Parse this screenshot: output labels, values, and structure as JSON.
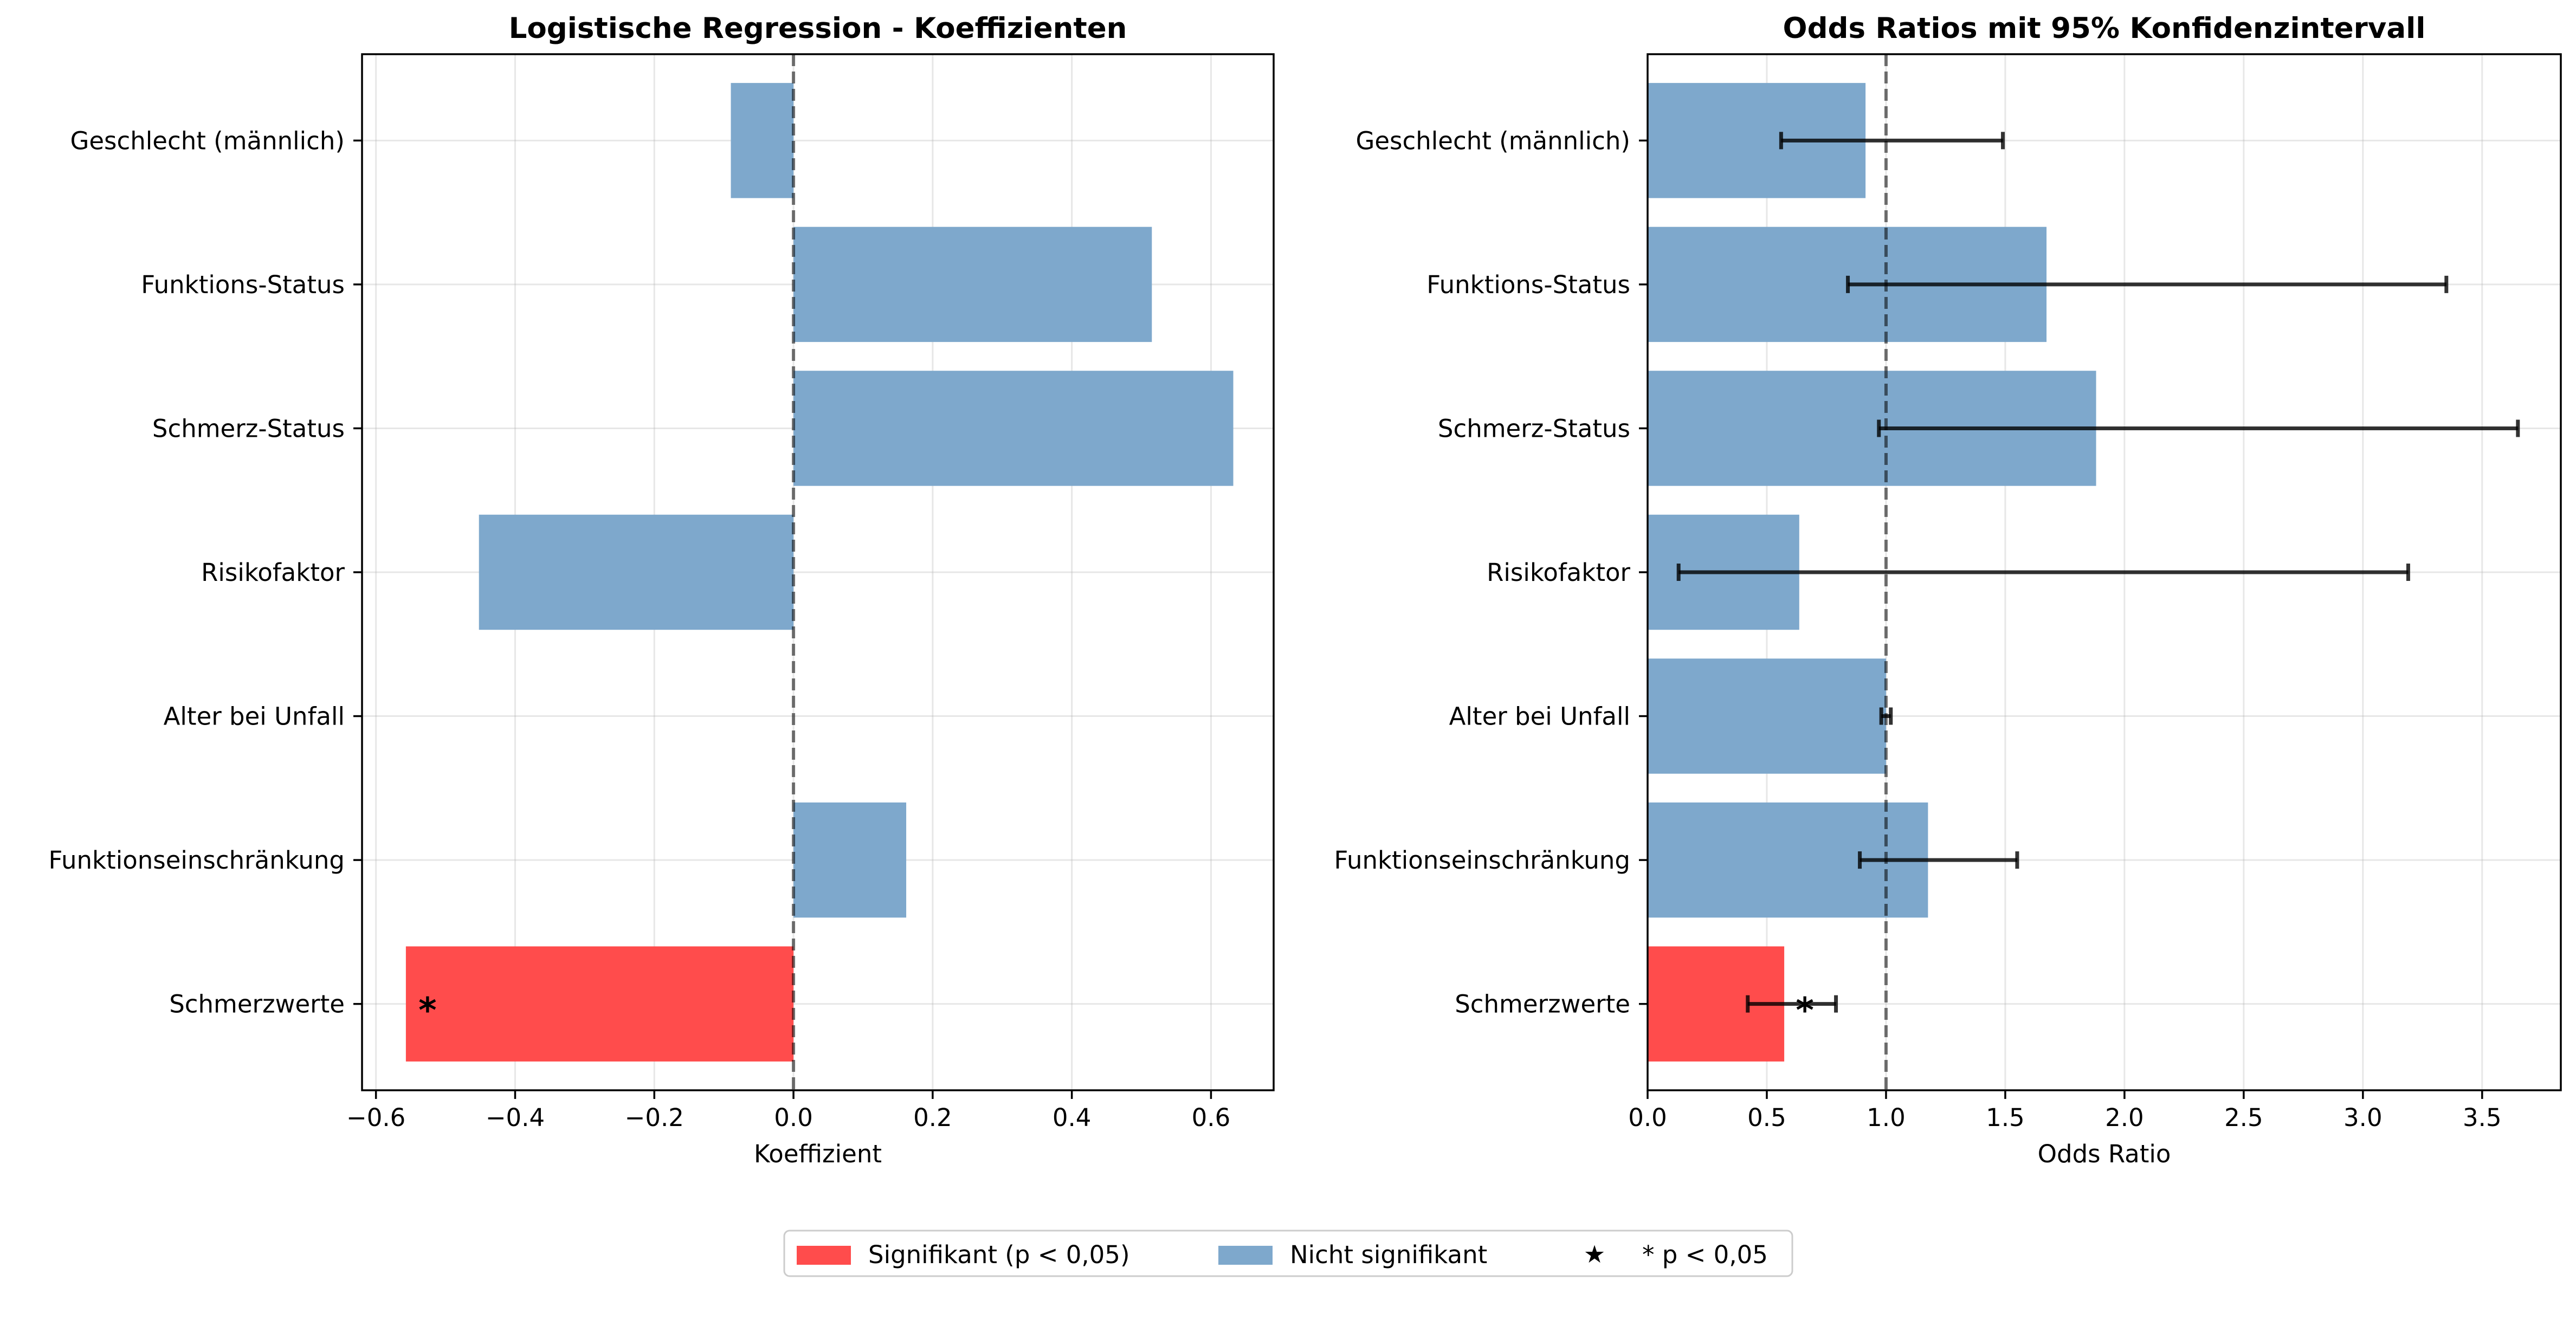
{
  "colors": {
    "significant": "#ff4c4c",
    "not_significant": "#7ea8cc",
    "errorbar": "#000000",
    "refline": "#555555"
  },
  "chart_data": [
    {
      "type": "bar",
      "orientation": "horizontal",
      "title": "Logistische Regression - Koeffizienten",
      "xlabel": "Koeffizient",
      "ylabel": "",
      "xlim": [
        -0.62,
        0.69
      ],
      "xticks": [
        -0.6,
        -0.4,
        -0.2,
        0.0,
        0.2,
        0.4,
        0.6
      ],
      "xtick_labels": [
        "−0.6",
        "−0.4",
        "−0.2",
        "0.0",
        "0.2",
        "0.4",
        "0.6"
      ],
      "reference_line": 0,
      "grid": true,
      "categories": [
        "Geschlecht (männlich)",
        "Funktions-Status",
        "Schmerz-Status",
        "Risikofaktor",
        "Alter bei Unfall",
        "Funktionseinschränkung",
        "Schmerzwerte"
      ],
      "values": [
        -0.09,
        0.515,
        0.632,
        -0.452,
        0.0,
        0.162,
        -0.557
      ],
      "significant": [
        false,
        false,
        false,
        false,
        false,
        false,
        true
      ],
      "annotations": [
        {
          "category": "Schmerzwerte",
          "text": "*"
        }
      ]
    },
    {
      "type": "bar",
      "orientation": "horizontal",
      "title": "Odds Ratios mit 95% Konfidenzintervall",
      "xlabel": "Odds Ratio",
      "ylabel": "",
      "xlim": [
        0,
        3.83
      ],
      "xticks": [
        0.0,
        0.5,
        1.0,
        1.5,
        2.0,
        2.5,
        3.0,
        3.5
      ],
      "xtick_labels": [
        "0.0",
        "0.5",
        "1.0",
        "1.5",
        "2.0",
        "2.5",
        "3.0",
        "3.5"
      ],
      "reference_line": 1,
      "grid": true,
      "categories": [
        "Geschlecht (männlich)",
        "Funktions-Status",
        "Schmerz-Status",
        "Risikofaktor",
        "Alter bei Unfall",
        "Funktionseinschränkung",
        "Schmerzwerte"
      ],
      "values": [
        0.914,
        1.673,
        1.881,
        0.636,
        1.0,
        1.176,
        0.573
      ],
      "ci_lower": [
        0.56,
        0.84,
        0.97,
        0.13,
        0.98,
        0.89,
        0.42
      ],
      "ci_upper": [
        1.49,
        3.35,
        3.65,
        3.19,
        1.02,
        1.55,
        0.79
      ],
      "significant": [
        false,
        false,
        false,
        false,
        false,
        false,
        true
      ],
      "annotations": [
        {
          "category": "Schmerzwerte",
          "text": "*"
        }
      ]
    }
  ],
  "legend": {
    "placement": "bottom-center",
    "entries": [
      {
        "label": "Signifikant (p < 0,05)",
        "marker": "patch-significant"
      },
      {
        "label": "Nicht signifikant",
        "marker": "patch-not-significant"
      },
      {
        "label": "* p < 0,05",
        "marker": "star-glyph",
        "glyph": "★"
      }
    ]
  }
}
